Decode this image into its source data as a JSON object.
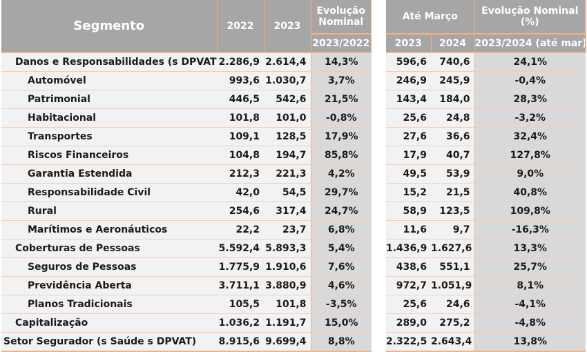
{
  "header": {
    "segment": "Segmento",
    "year_a": "2022",
    "year_b": "2023",
    "evolution_line1": "Evolução",
    "evolution_line2": "Nominal",
    "evolution_period": "2023/2022",
    "ytd_title": "Até Março",
    "ytd_year_a": "2023",
    "ytd_year_b": "2024",
    "ytd_evolution_line1": "Evolução Nominal",
    "ytd_evolution_line2": "(%)",
    "ytd_evolution_period": "2023/2024 (até mar)"
  },
  "rows": [
    {
      "segment": "Danos e Responsabilidades (s DPVAT)",
      "level": 1,
      "v2022": "2.286,9",
      "v2023": "2.614,4",
      "evo": "14,3%",
      "m2023": "596,6",
      "m2024": "740,6",
      "evo_ytd": "24,1%"
    },
    {
      "segment": "Automóvel",
      "level": 2,
      "v2022": "993,6",
      "v2023": "1.030,7",
      "evo": "3,7%",
      "m2023": "246,9",
      "m2024": "245,9",
      "evo_ytd": "-0,4%"
    },
    {
      "segment": "Patrimonial",
      "level": 2,
      "v2022": "446,5",
      "v2023": "542,6",
      "evo": "21,5%",
      "m2023": "143,4",
      "m2024": "184,0",
      "evo_ytd": "28,3%"
    },
    {
      "segment": "Habitacional",
      "level": 2,
      "v2022": "101,8",
      "v2023": "101,0",
      "evo": "-0,8%",
      "m2023": "25,6",
      "m2024": "24,8",
      "evo_ytd": "-3,2%"
    },
    {
      "segment": "Transportes",
      "level": 2,
      "v2022": "109,1",
      "v2023": "128,5",
      "evo": "17,9%",
      "m2023": "27,6",
      "m2024": "36,6",
      "evo_ytd": "32,4%"
    },
    {
      "segment": "Riscos Financeiros",
      "level": 2,
      "v2022": "104,8",
      "v2023": "194,7",
      "evo": "85,8%",
      "m2023": "17,9",
      "m2024": "40,7",
      "evo_ytd": "127,8%"
    },
    {
      "segment": "Garantia Estendida",
      "level": 2,
      "v2022": "212,3",
      "v2023": "221,3",
      "evo": "4,2%",
      "m2023": "49,5",
      "m2024": "53,9",
      "evo_ytd": "9,0%"
    },
    {
      "segment": "Responsabilidade Civil",
      "level": 2,
      "v2022": "42,0",
      "v2023": "54,5",
      "evo": "29,7%",
      "m2023": "15,2",
      "m2024": "21,5",
      "evo_ytd": "40,8%"
    },
    {
      "segment": "Rural",
      "level": 2,
      "v2022": "254,6",
      "v2023": "317,4",
      "evo": "24,7%",
      "m2023": "58,9",
      "m2024": "123,5",
      "evo_ytd": "109,8%"
    },
    {
      "segment": "Marítimos e Aeronáuticos",
      "level": 2,
      "v2022": "22,2",
      "v2023": "23,7",
      "evo": "6,8%",
      "m2023": "11,6",
      "m2024": "9,7",
      "evo_ytd": "-16,3%"
    },
    {
      "segment": "Coberturas de Pessoas",
      "level": 1,
      "v2022": "5.592,4",
      "v2023": "5.893,3",
      "evo": "5,4%",
      "m2023": "1.436,9",
      "m2024": "1.627,6",
      "evo_ytd": "13,3%"
    },
    {
      "segment": "Seguros de Pessoas",
      "level": 2,
      "v2022": "1.775,9",
      "v2023": "1.910,6",
      "evo": "7,6%",
      "m2023": "438,6",
      "m2024": "551,1",
      "evo_ytd": "25,7%"
    },
    {
      "segment": "Previdência Aberta",
      "level": 2,
      "v2022": "3.711,1",
      "v2023": "3.880,9",
      "evo": "4,6%",
      "m2023": "972,7",
      "m2024": "1.051,9",
      "evo_ytd": "8,1%"
    },
    {
      "segment": "Planos Tradicionais",
      "level": 2,
      "v2022": "105,5",
      "v2023": "101,8",
      "evo": "-3,5%",
      "m2023": "25,6",
      "m2024": "24,6",
      "evo_ytd": "-4,1%"
    },
    {
      "segment": "Capitalização",
      "level": 1,
      "v2022": "1.036,2",
      "v2023": "1.191,7",
      "evo": "15,0%",
      "m2023": "289,0",
      "m2024": "275,2",
      "evo_ytd": "-4,8%"
    },
    {
      "segment": "Setor Segurador (s Saúde s DPVAT)",
      "level": 0,
      "v2022": "8.915,6",
      "v2023": "9.699,4",
      "evo": "8,8%",
      "m2023": "2.322,5",
      "m2024": "2.643,4",
      "evo_ytd": "13,8%"
    }
  ],
  "colors": {
    "header_bg": "#a6a6a6",
    "row_bg": "#f2f2f2",
    "pct_bg": "#d9d9d9",
    "border_accent": "#f4b183"
  }
}
